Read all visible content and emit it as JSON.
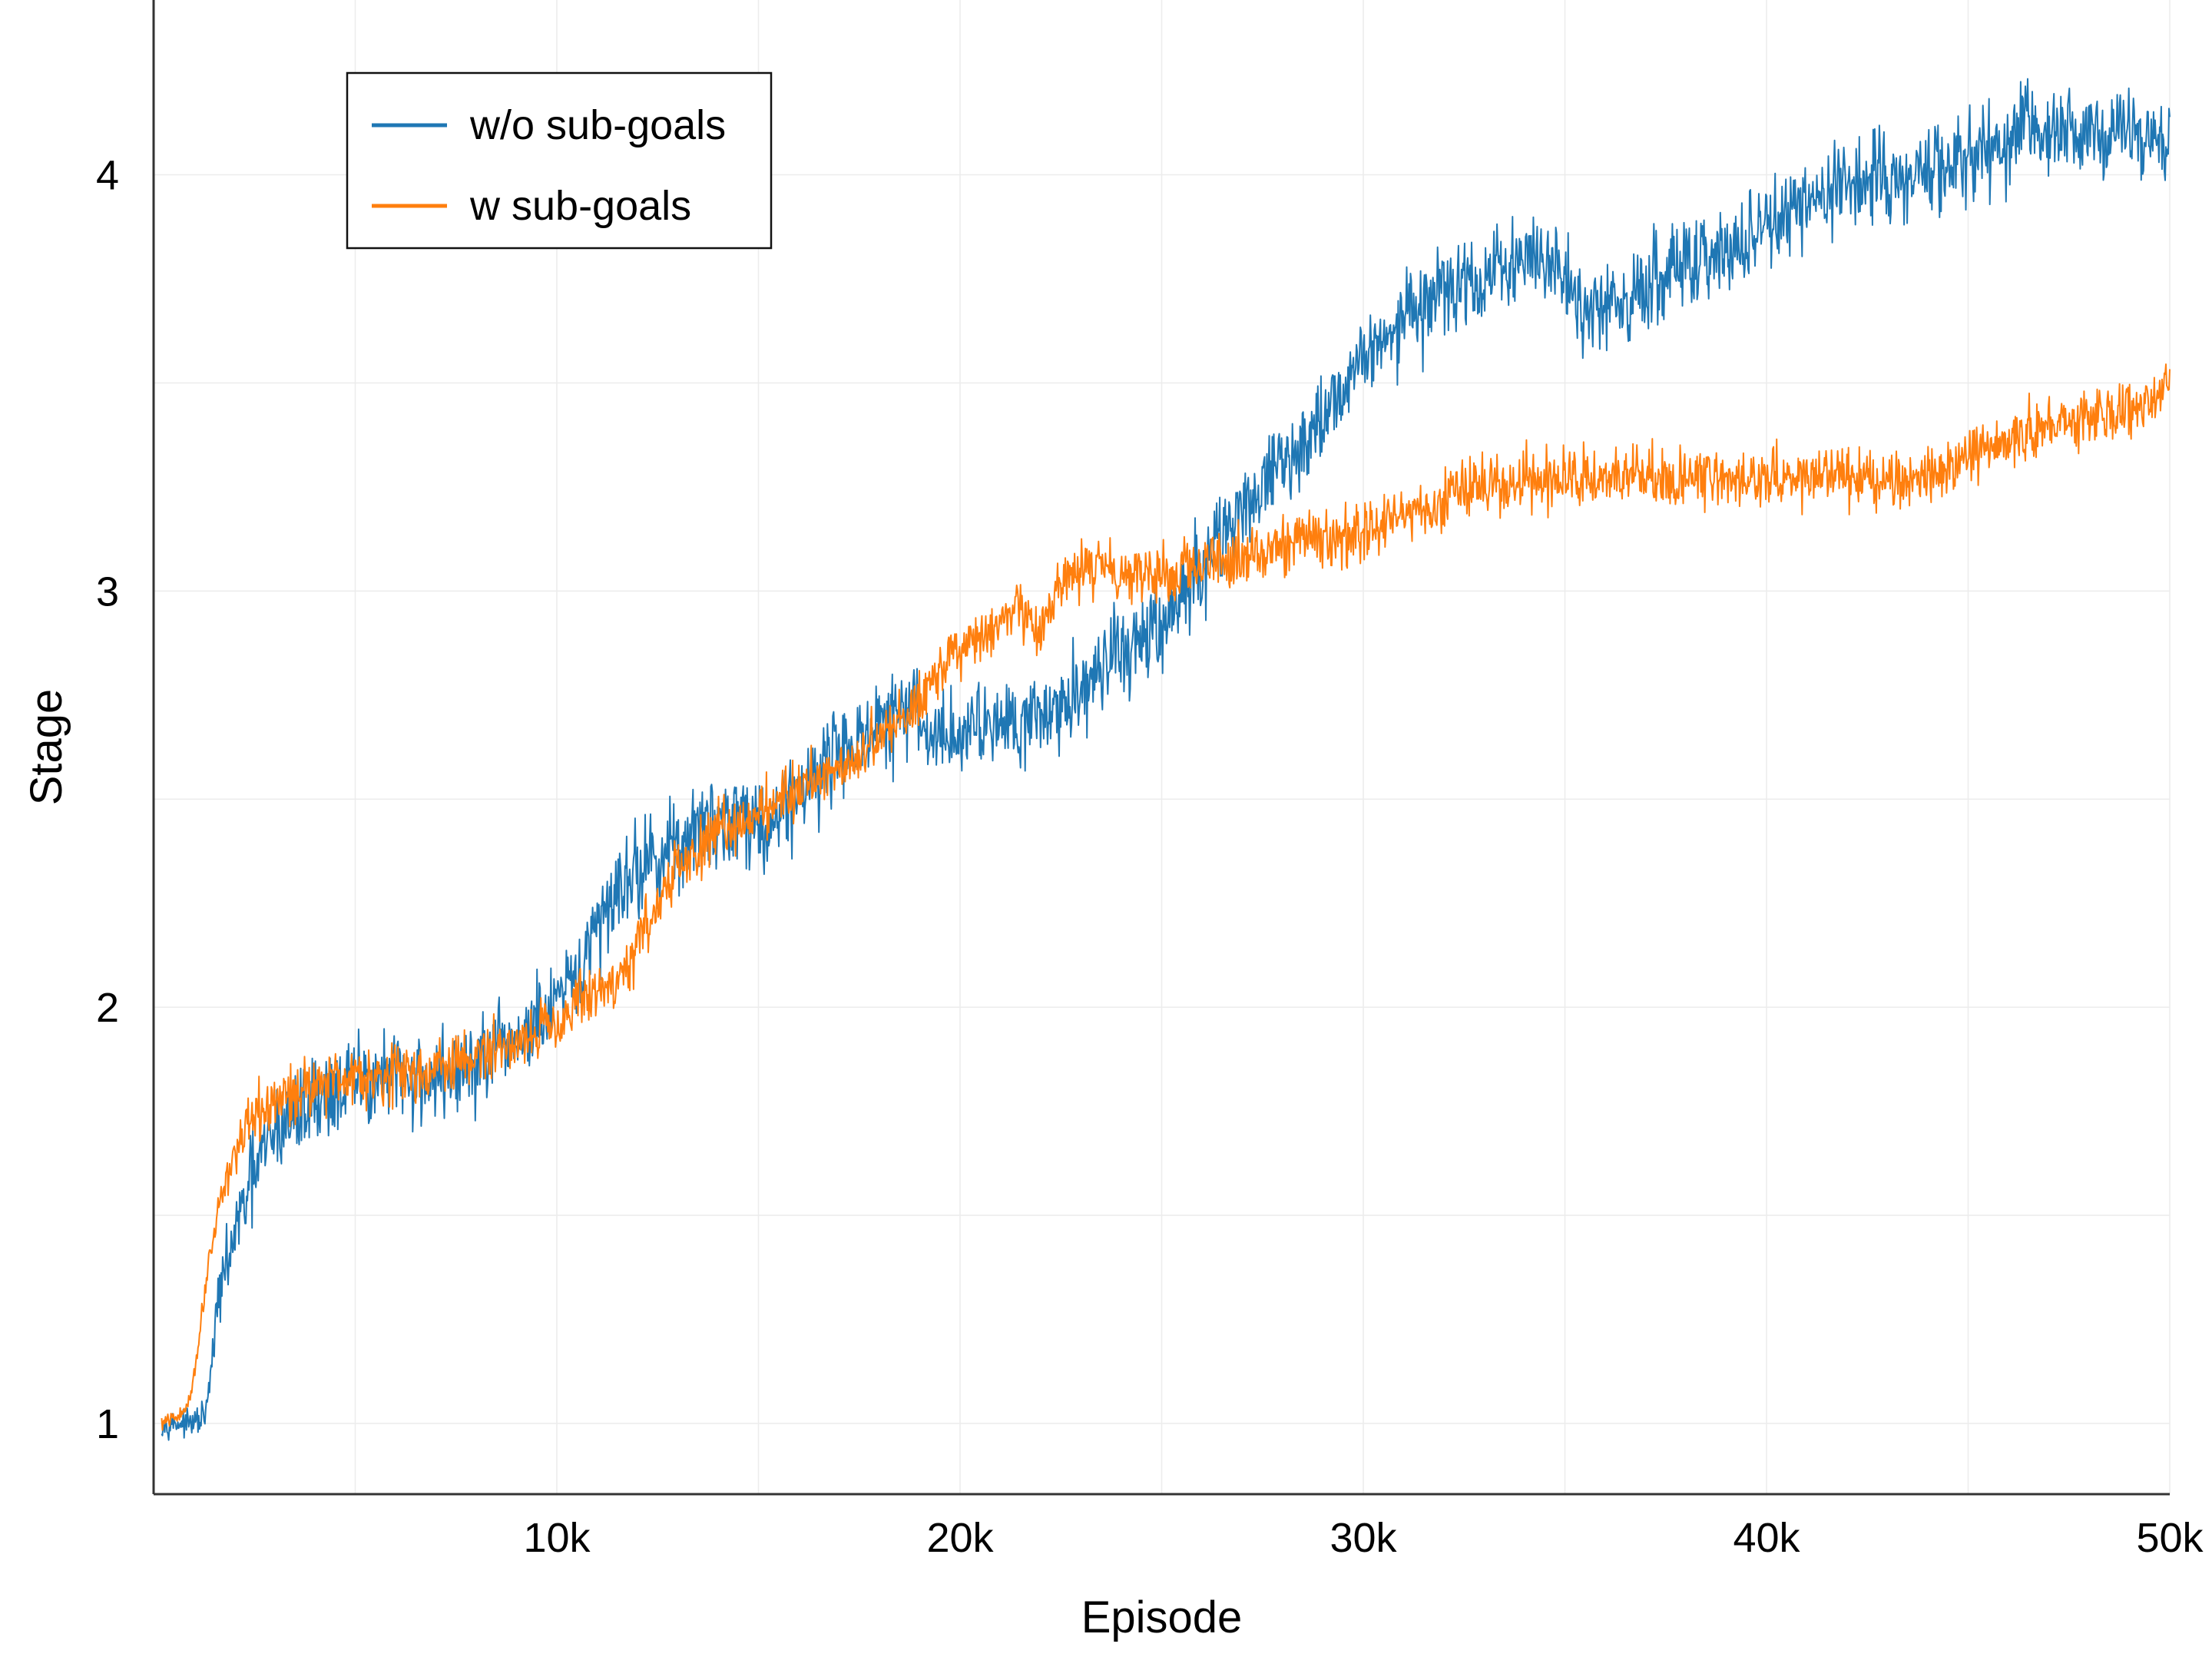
{
  "chart_data": {
    "type": "line",
    "xlabel": "Episode",
    "ylabel": "Stage",
    "xlim": [
      0,
      50000
    ],
    "ylim": [
      0.83,
      4.42
    ],
    "x_ticks": [
      {
        "value": 10000,
        "label": "10k"
      },
      {
        "value": 20000,
        "label": "20k"
      },
      {
        "value": 30000,
        "label": "30k"
      },
      {
        "value": 40000,
        "label": "40k"
      },
      {
        "value": 50000,
        "label": "50k"
      }
    ],
    "y_ticks": [
      {
        "value": 1,
        "label": "1"
      },
      {
        "value": 2,
        "label": "2"
      },
      {
        "value": 3,
        "label": "3"
      },
      {
        "value": 4,
        "label": "4"
      }
    ],
    "x_grid": [
      5000,
      10000,
      15000,
      20000,
      25000,
      30000,
      35000,
      40000,
      45000,
      50000
    ],
    "y_grid": [
      1,
      1.5,
      2,
      2.5,
      3,
      3.5,
      4
    ],
    "grid": true,
    "legend_position": "top-left",
    "series": [
      {
        "name": "w/o sub-goals",
        "color": "#1f77b4",
        "noise": 0.055,
        "points": [
          [
            200,
            1.0
          ],
          [
            1000,
            1.0
          ],
          [
            1300,
            1.02
          ],
          [
            1400,
            1.1
          ],
          [
            1600,
            1.3
          ],
          [
            2000,
            1.45
          ],
          [
            2500,
            1.6
          ],
          [
            3000,
            1.7
          ],
          [
            4000,
            1.78
          ],
          [
            5000,
            1.82
          ],
          [
            6000,
            1.83
          ],
          [
            7000,
            1.83
          ],
          [
            8000,
            1.86
          ],
          [
            9000,
            1.92
          ],
          [
            9800,
            1.98
          ],
          [
            10400,
            2.05
          ],
          [
            11000,
            2.18
          ],
          [
            11500,
            2.3
          ],
          [
            12500,
            2.36
          ],
          [
            13500,
            2.42
          ],
          [
            14500,
            2.47
          ],
          [
            15200,
            2.43
          ],
          [
            16000,
            2.52
          ],
          [
            17000,
            2.62
          ],
          [
            18000,
            2.67
          ],
          [
            18800,
            2.72
          ],
          [
            19200,
            2.65
          ],
          [
            20000,
            2.66
          ],
          [
            21000,
            2.7
          ],
          [
            22000,
            2.7
          ],
          [
            22500,
            2.72
          ],
          [
            23500,
            2.82
          ],
          [
            24500,
            2.88
          ],
          [
            25500,
            2.97
          ],
          [
            26200,
            3.1
          ],
          [
            26600,
            3.15
          ],
          [
            27500,
            3.25
          ],
          [
            28500,
            3.35
          ],
          [
            29500,
            3.5
          ],
          [
            30500,
            3.62
          ],
          [
            31500,
            3.68
          ],
          [
            32000,
            3.72
          ],
          [
            33000,
            3.75
          ],
          [
            34000,
            3.8
          ],
          [
            34800,
            3.78
          ],
          [
            35500,
            3.68
          ],
          [
            36500,
            3.7
          ],
          [
            37500,
            3.75
          ],
          [
            38500,
            3.8
          ],
          [
            39500,
            3.83
          ],
          [
            40500,
            3.9
          ],
          [
            41500,
            3.95
          ],
          [
            42500,
            3.98
          ],
          [
            43500,
            4.0
          ],
          [
            44500,
            4.02
          ],
          [
            45500,
            4.06
          ],
          [
            46500,
            4.1
          ],
          [
            47500,
            4.1
          ],
          [
            48500,
            4.1
          ],
          [
            50000,
            4.1
          ]
        ]
      },
      {
        "name": "w sub-goals",
        "color": "#ff7f0e",
        "noise": 0.035,
        "points": [
          [
            200,
            1.0
          ],
          [
            700,
            1.02
          ],
          [
            900,
            1.06
          ],
          [
            1100,
            1.18
          ],
          [
            1300,
            1.35
          ],
          [
            1600,
            1.52
          ],
          [
            2000,
            1.65
          ],
          [
            2500,
            1.73
          ],
          [
            3000,
            1.77
          ],
          [
            4000,
            1.82
          ],
          [
            5000,
            1.84
          ],
          [
            6000,
            1.84
          ],
          [
            7000,
            1.85
          ],
          [
            8000,
            1.88
          ],
          [
            9000,
            1.92
          ],
          [
            10000,
            1.97
          ],
          [
            10800,
            2.03
          ],
          [
            11300,
            2.05
          ],
          [
            11800,
            2.1
          ],
          [
            12200,
            2.2
          ],
          [
            13000,
            2.33
          ],
          [
            14000,
            2.42
          ],
          [
            15000,
            2.47
          ],
          [
            16000,
            2.53
          ],
          [
            17000,
            2.58
          ],
          [
            18000,
            2.64
          ],
          [
            18800,
            2.72
          ],
          [
            19500,
            2.82
          ],
          [
            20500,
            2.88
          ],
          [
            21500,
            2.95
          ],
          [
            22000,
            2.9
          ],
          [
            22600,
            3.03
          ],
          [
            23500,
            3.06
          ],
          [
            24500,
            3.05
          ],
          [
            25500,
            3.04
          ],
          [
            26500,
            3.07
          ],
          [
            27500,
            3.1
          ],
          [
            28500,
            3.13
          ],
          [
            29500,
            3.12
          ],
          [
            30500,
            3.16
          ],
          [
            31500,
            3.2
          ],
          [
            32500,
            3.25
          ],
          [
            33500,
            3.26
          ],
          [
            35000,
            3.27
          ],
          [
            37000,
            3.28
          ],
          [
            39000,
            3.27
          ],
          [
            41000,
            3.27
          ],
          [
            43000,
            3.26
          ],
          [
            44500,
            3.28
          ],
          [
            45500,
            3.35
          ],
          [
            46500,
            3.38
          ],
          [
            47500,
            3.4
          ],
          [
            48500,
            3.43
          ],
          [
            49500,
            3.45
          ],
          [
            50000,
            3.5
          ]
        ]
      }
    ]
  }
}
